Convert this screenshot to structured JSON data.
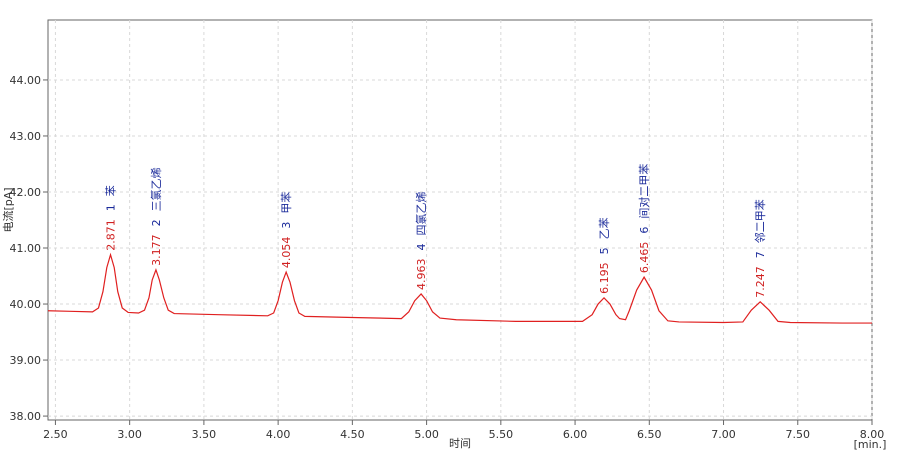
{
  "chart_data": {
    "type": "line",
    "x_label": "时间",
    "x_unit": "[min.]",
    "y_label": "电流[pA]",
    "xlim": [
      2.45,
      8.0
    ],
    "xticks": [
      {
        "value": 2.5,
        "label": "2.50"
      },
      {
        "value": 3,
        "label": "3.00"
      },
      {
        "value": 3.5,
        "label": "3.50"
      },
      {
        "value": 4,
        "label": "4.00"
      },
      {
        "value": 4.5,
        "label": "4.50"
      },
      {
        "value": 5,
        "label": "5.00"
      },
      {
        "value": 5.5,
        "label": "5.50"
      },
      {
        "value": 6,
        "label": "6.00"
      },
      {
        "value": 6.5,
        "label": "6.50"
      },
      {
        "value": 7,
        "label": "7.00"
      },
      {
        "value": 7.5,
        "label": "7.50"
      },
      {
        "value": 8,
        "label": "8.00"
      }
    ],
    "ylim": [
      37.93,
      45.07
    ],
    "yticks": [
      {
        "value": 38,
        "label": "38.00"
      },
      {
        "value": 39,
        "label": "39.00"
      },
      {
        "value": 40,
        "label": "40.00"
      },
      {
        "value": 41,
        "label": "41.00"
      },
      {
        "value": 42,
        "label": "42.00"
      },
      {
        "value": 43,
        "label": "43.00"
      },
      {
        "value": 44,
        "label": "44.00"
      }
    ],
    "grid": true,
    "series": [
      {
        "color": "#e02020",
        "x": [
          2.45,
          2.6,
          2.75,
          2.79,
          2.82,
          2.846,
          2.871,
          2.896,
          2.92,
          2.95,
          2.99,
          3.06,
          3.1,
          3.13,
          3.152,
          3.177,
          3.2,
          3.23,
          3.26,
          3.3,
          3.6,
          3.93,
          3.97,
          4.0,
          4.029,
          4.054,
          4.08,
          4.11,
          4.14,
          4.18,
          4.5,
          4.83,
          4.88,
          4.92,
          4.963,
          5.0,
          5.04,
          5.09,
          5.2,
          5.6,
          6.05,
          6.115,
          6.155,
          6.195,
          6.235,
          6.275,
          6.3,
          6.34,
          6.365,
          6.415,
          6.465,
          6.515,
          6.565,
          6.625,
          6.7,
          7.0,
          7.13,
          7.187,
          7.247,
          7.307,
          7.367,
          7.45,
          7.8,
          8.0
        ],
        "values": [
          39.88,
          39.87,
          39.86,
          39.93,
          40.22,
          40.65,
          40.88,
          40.65,
          40.22,
          39.93,
          39.85,
          39.84,
          39.89,
          40.11,
          40.43,
          40.61,
          40.43,
          40.11,
          39.89,
          39.83,
          39.81,
          39.79,
          39.84,
          40.06,
          40.39,
          40.57,
          40.39,
          40.06,
          39.84,
          39.78,
          39.76,
          39.74,
          39.86,
          40.06,
          40.18,
          40.06,
          39.86,
          39.75,
          39.72,
          39.69,
          39.69,
          39.81,
          40.0,
          40.11,
          40.0,
          39.81,
          39.74,
          39.72,
          39.88,
          40.25,
          40.48,
          40.25,
          39.88,
          39.7,
          39.68,
          39.67,
          39.68,
          39.89,
          40.04,
          39.89,
          39.69,
          39.67,
          39.66,
          39.66
        ]
      }
    ],
    "peaks": [
      {
        "time": 2.871,
        "height": 40.88,
        "id": 1,
        "name": "苯"
      },
      {
        "time": 3.177,
        "height": 40.61,
        "id": 2,
        "name": "三氯乙烯"
      },
      {
        "time": 4.054,
        "height": 40.57,
        "id": 3,
        "name": "甲苯"
      },
      {
        "time": 4.963,
        "height": 40.18,
        "id": 4,
        "name": "四氯乙烯"
      },
      {
        "time": 6.195,
        "height": 40.11,
        "id": 5,
        "name": "乙苯"
      },
      {
        "time": 6.465,
        "height": 40.48,
        "id": 6,
        "name": "间对二甲苯"
      },
      {
        "time": 7.247,
        "height": 40.04,
        "id": 7,
        "name": "邻二甲苯"
      }
    ]
  }
}
